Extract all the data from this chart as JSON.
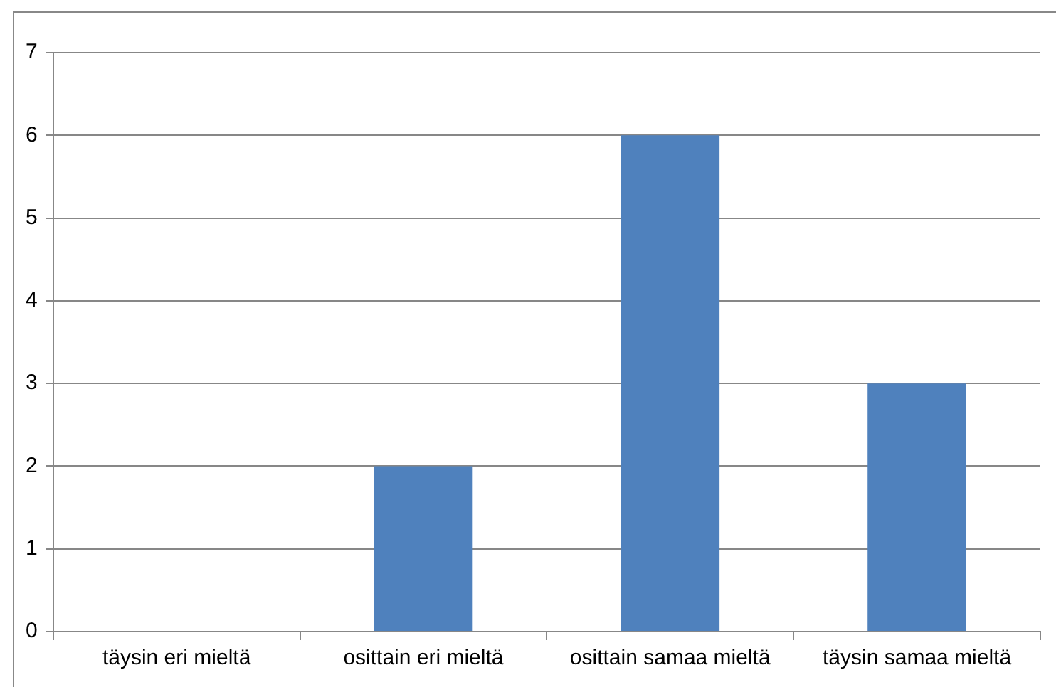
{
  "chart_data": {
    "type": "bar",
    "categories": [
      "täysin eri mieltä",
      "osittain eri mieltä",
      "osittain samaa mieltä",
      "täysin samaa mieltä"
    ],
    "values": [
      0,
      2,
      6,
      3
    ],
    "color": "#4f81bd",
    "ylim": [
      0,
      7
    ],
    "yticks": [
      0,
      1,
      2,
      3,
      4,
      5,
      6,
      7
    ],
    "grid": "y",
    "legend": false
  }
}
